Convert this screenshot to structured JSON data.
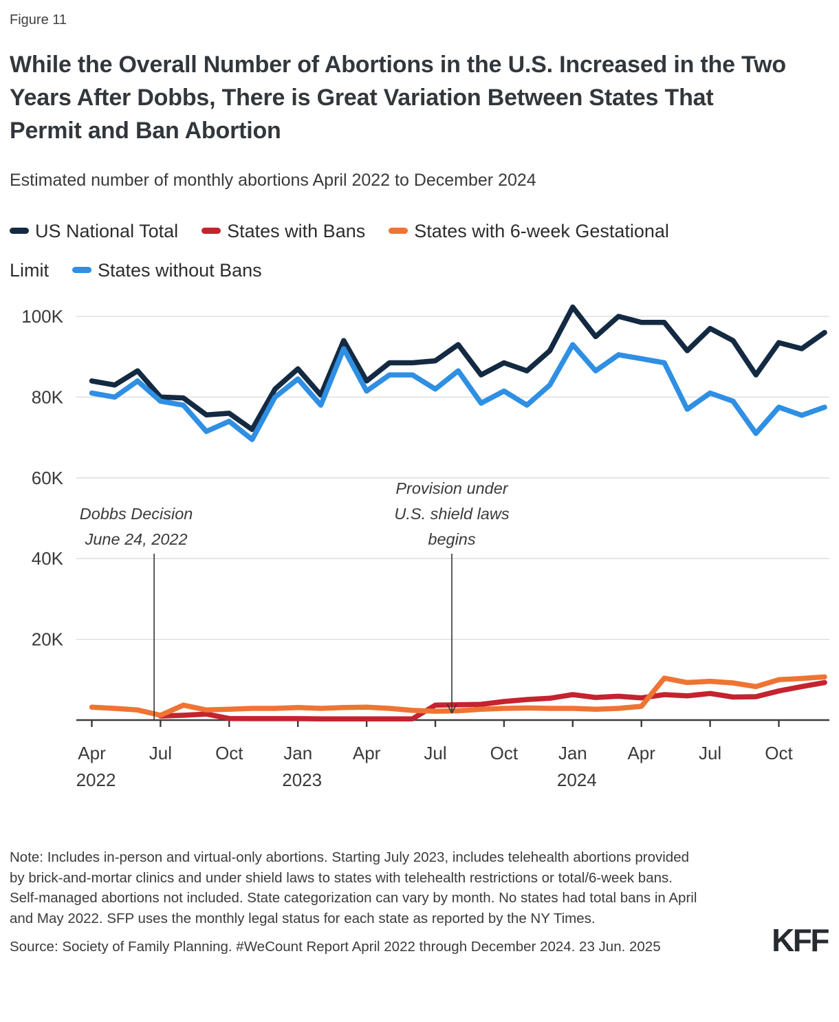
{
  "page": {
    "figure_label": "Figure 11",
    "title": "While the Overall Number of Abortions in the U.S. Increased in the Two Years After Dobbs, There is Great Variation Between States That Permit and Ban Abortion",
    "subtitle": "Estimated number of monthly abortions April 2022 to December 2024",
    "note": "Note: Includes in-person and virtual-only abortions. Starting July 2023, includes telehealth abortions provided by brick-and-mortar clinics and under shield laws to states with telehealth restrictions or total/6-week bans. Self-managed abortions not included. State categorization can vary by month. No states had total bans in April and May 2022. SFP uses the monthly legal status for each state as reported by the NY Times.",
    "source": "Source: Society of Family Planning. #WeCount Report April 2022 through December 2024. 23 Jun. 2025",
    "logo": "KFF"
  },
  "colors": {
    "national": "#142a42",
    "states_with_bans": "#c4232f",
    "six_week_limit": "#ef7434",
    "states_without_bans": "#2f8fe3",
    "gridline": "#dadada",
    "axis": "#3c3c3c",
    "text": "#3a3a3a"
  },
  "legend": [
    {
      "label": "US National Total",
      "color": "#142a42"
    },
    {
      "label": "States with Bans",
      "color": "#c4232f"
    },
    {
      "label": "States with 6-week Gestational Limit",
      "color": "#ef7434"
    },
    {
      "label": "States without Bans",
      "color": "#2f8fe3"
    }
  ],
  "chart_data": {
    "type": "line",
    "values_unit": "thousands of abortions per month",
    "x": [
      "Apr 2022",
      "May 2022",
      "Jun 2022",
      "Jul 2022",
      "Aug 2022",
      "Sep 2022",
      "Oct 2022",
      "Nov 2022",
      "Dec 2022",
      "Jan 2023",
      "Feb 2023",
      "Mar 2023",
      "Apr 2023",
      "May 2023",
      "Jun 2023",
      "Jul 2023",
      "Aug 2023",
      "Sep 2023",
      "Oct 2023",
      "Nov 2023",
      "Dec 2023",
      "Jan 2024",
      "Feb 2024",
      "Mar 2024",
      "Apr 2024",
      "May 2024",
      "Jun 2024",
      "Jul 2024",
      "Aug 2024",
      "Sep 2024",
      "Oct 2024",
      "Nov 2024",
      "Dec 2024"
    ],
    "x_axis": {
      "tick_indices": [
        0,
        3,
        6,
        9,
        12,
        15,
        18,
        21,
        24,
        27,
        30
      ],
      "tick_labels": [
        "Apr",
        "Jul",
        "Oct",
        "Jan",
        "Apr",
        "Jul",
        "Oct",
        "Jan",
        "Apr",
        "Jul",
        "Oct"
      ],
      "year_labels": [
        {
          "index": 0,
          "label": "2022"
        },
        {
          "index": 9,
          "label": "2023"
        },
        {
          "index": 21,
          "label": "2024"
        }
      ]
    },
    "y_axis": {
      "range": [
        0,
        105
      ],
      "grid": true,
      "ticks": [
        {
          "value": 20,
          "label": "20K"
        },
        {
          "value": 40,
          "label": "40K"
        },
        {
          "value": 60,
          "label": "60K"
        },
        {
          "value": 80,
          "label": "80K"
        },
        {
          "value": 100,
          "label": "100K"
        }
      ]
    },
    "legend_position": "top",
    "series": [
      {
        "name": "States with Bans",
        "color": "#c4232f",
        "values": [
          null,
          null,
          null,
          1,
          1.2,
          1.5,
          0.4,
          0.35,
          0.35,
          0.35,
          0.3,
          0.3,
          0.3,
          0.3,
          0.3,
          3.7,
          3.8,
          3.9,
          4.6,
          5.1,
          5.4,
          6.3,
          5.6,
          5.9,
          5.5,
          6.3,
          6,
          6.6,
          5.7,
          5.8,
          7.2,
          8.3,
          9.3
        ]
      },
      {
        "name": "States with 6-week Gestational Limit",
        "color": "#ef7434",
        "values": [
          3.2,
          2.9,
          2.5,
          1.2,
          3.7,
          2.5,
          2.7,
          2.9,
          2.9,
          3.1,
          2.9,
          3.1,
          3.2,
          2.9,
          2.4,
          2.2,
          2.3,
          2.7,
          2.9,
          3,
          2.9,
          2.9,
          2.7,
          2.9,
          3.4,
          10.4,
          9.3,
          9.6,
          9.2,
          8.3,
          10,
          10.3,
          10.7
        ]
      },
      {
        "name": "US National Total",
        "color": "#142a42",
        "values": [
          84,
          83,
          86.5,
          80,
          79.8,
          75.6,
          76,
          72,
          82,
          87,
          80.5,
          94,
          84,
          88.5,
          88.5,
          89,
          93,
          85.5,
          88.5,
          86.5,
          91.5,
          102.3,
          95,
          100,
          98.5,
          98.5,
          91.5,
          97,
          94,
          85.5,
          93.5,
          92,
          96
        ]
      },
      {
        "name": "States without Bans",
        "color": "#2f8fe3",
        "values": [
          81,
          80,
          84,
          79,
          78,
          71.5,
          74,
          69.5,
          80,
          84.5,
          78,
          92,
          81.5,
          85.5,
          85.5,
          82,
          86.5,
          78.5,
          81.5,
          78,
          83,
          93,
          86.5,
          90.5,
          89.5,
          88.5,
          77,
          81,
          79,
          71,
          77.5,
          75.5,
          77.5
        ]
      }
    ],
    "annotations": [
      {
        "id": "dobbs-decision",
        "lines": [
          "Dobbs Decision",
          "June 24, 2022"
        ],
        "x_index": 2.72,
        "arrowhead": false
      },
      {
        "id": "shield-laws",
        "lines": [
          "Provision under",
          "U.S. shield laws",
          "begins"
        ],
        "x_index": 15.72,
        "arrowhead": true
      }
    ]
  }
}
